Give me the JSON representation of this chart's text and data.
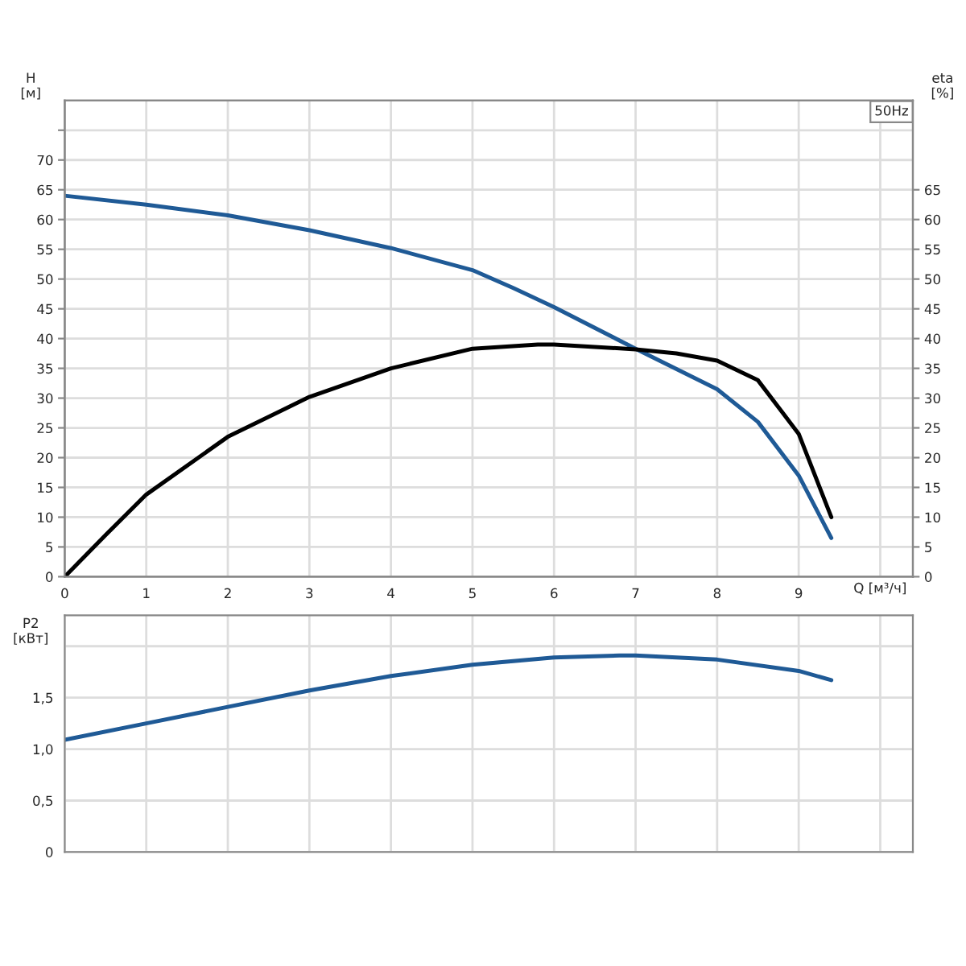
{
  "chart_data": [
    {
      "type": "line",
      "xlabel": "Q [м³/ч]",
      "ylabel": "H\n[м]",
      "y2label": "eta\n[%]",
      "annotations": [
        "50Hz"
      ],
      "xlim": [
        0,
        10.4
      ],
      "xticks": [
        0,
        1,
        2,
        3,
        4,
        5,
        6,
        7,
        8,
        9,
        {
          "value": 10,
          "label": null
        }
      ],
      "ylim": [
        0,
        80
      ],
      "yticks": [
        0,
        5,
        10,
        15,
        20,
        25,
        30,
        35,
        40,
        45,
        50,
        55,
        60,
        65,
        70,
        {
          "value": 75,
          "label": null
        }
      ],
      "y2lim": [
        0,
        80
      ],
      "y2ticks": [
        0,
        5,
        10,
        15,
        20,
        25,
        30,
        35,
        40,
        45,
        50,
        55,
        60,
        65
      ],
      "grid": true,
      "legend": false,
      "series": [
        {
          "color": "#1f5a96",
          "x": [
            0,
            1,
            2,
            3,
            4,
            5,
            5.5,
            6,
            7,
            8,
            8.5,
            9,
            9.4
          ],
          "values": [
            64,
            62.5,
            60.7,
            58.2,
            55.2,
            51.5,
            48.5,
            45.3,
            38.3,
            31.5,
            26,
            17,
            6.5
          ]
        },
        {
          "color": "#000000",
          "axis": "y2",
          "x": [
            0,
            0.5,
            1,
            2,
            3,
            4,
            5,
            5.8,
            6,
            7,
            7.5,
            8,
            8.5,
            9,
            9.4
          ],
          "values": [
            0,
            7,
            13.8,
            23.5,
            30.2,
            35,
            38.3,
            39,
            39,
            38.2,
            37.5,
            36.3,
            33,
            24,
            10
          ]
        }
      ]
    },
    {
      "type": "line",
      "ylabel": "P2\n[кВт]",
      "tick_labels": "y",
      "xlim": [
        0,
        10.4
      ],
      "xticks": [
        0,
        1,
        2,
        3,
        4,
        5,
        6,
        7,
        8,
        9,
        10
      ],
      "ylim": [
        0,
        2.3
      ],
      "yticks": [
        0,
        {
          "value": 0.5,
          "label": "0,5"
        },
        {
          "value": 1,
          "label": "1,0"
        },
        {
          "value": 1.5,
          "label": "1,5"
        },
        {
          "value": 2,
          "label": null
        }
      ],
      "grid": true,
      "legend": false,
      "series": [
        {
          "color": "#1f5a96",
          "x": [
            0,
            1,
            2,
            3,
            4,
            5,
            6,
            6.8,
            7,
            8,
            9,
            9.4
          ],
          "values": [
            1.09,
            1.25,
            1.41,
            1.57,
            1.71,
            1.82,
            1.89,
            1.91,
            1.91,
            1.87,
            1.76,
            1.67
          ]
        }
      ]
    }
  ]
}
